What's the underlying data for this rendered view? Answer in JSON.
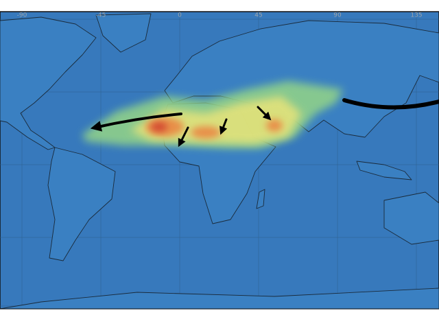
{
  "map": {
    "longitude_labels": [
      "-90",
      "-45",
      "0",
      "45",
      "90",
      "135"
    ]
  }
}
